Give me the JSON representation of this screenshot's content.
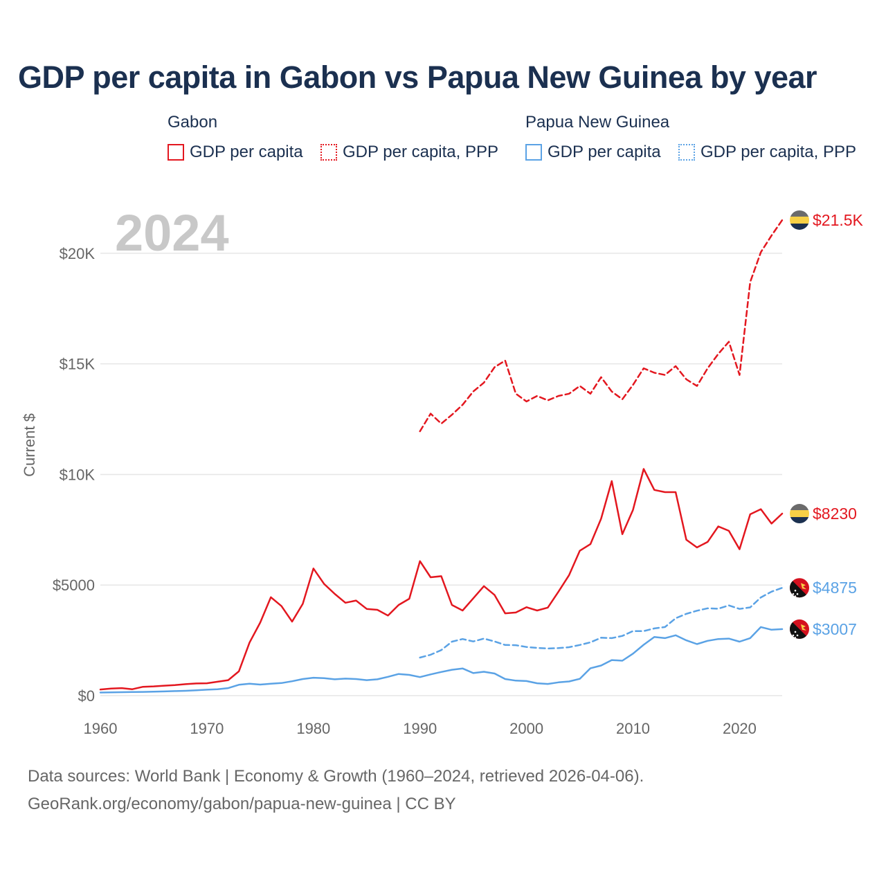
{
  "title": "GDP per capita in Gabon vs Papua New Guinea by year",
  "legend": {
    "groups": [
      {
        "name": "Gabon",
        "items": [
          "GDP per capita",
          "GDP per capita, PPP"
        ]
      },
      {
        "name": "Papua New Guinea",
        "items": [
          "GDP per capita",
          "GDP per capita, PPP"
        ]
      }
    ]
  },
  "colors": {
    "gabon": "#e3171f",
    "png": "#5aa2e5",
    "grid": "#e6e6e6",
    "axis": "#666666"
  },
  "footer": {
    "line1": "Data sources: World Bank | Economy & Growth (1960–2024, retrieved 2026-04-06).",
    "line2": "GeoRank.org/economy/gabon/papua-new-guinea | CC BY"
  },
  "chart_data": {
    "type": "line",
    "year_label": "2024",
    "ylabel": "Current $",
    "xlim": [
      1960,
      2024
    ],
    "ylim": [
      0,
      22000
    ],
    "x_ticks": [
      1960,
      1970,
      1980,
      1990,
      2000,
      2010,
      2020
    ],
    "x_tick_labels": [
      "1960",
      "1970",
      "1980",
      "1990",
      "2000",
      "2010",
      "2020"
    ],
    "y_ticks": [
      0,
      5000,
      10000,
      15000,
      20000
    ],
    "y_tick_labels": [
      "$0",
      "$5000",
      "$10K",
      "$15K",
      "$20K"
    ],
    "series": [
      {
        "name": "Gabon GDP per capita",
        "country": "gabon",
        "style": "solid",
        "end_label": "$8230",
        "x": [
          1960,
          1961,
          1962,
          1963,
          1964,
          1965,
          1966,
          1967,
          1968,
          1969,
          1970,
          1971,
          1972,
          1973,
          1974,
          1975,
          1976,
          1977,
          1978,
          1979,
          1980,
          1981,
          1982,
          1983,
          1984,
          1985,
          1986,
          1987,
          1988,
          1989,
          1990,
          1991,
          1992,
          1993,
          1994,
          1995,
          1996,
          1997,
          1998,
          1999,
          2000,
          2001,
          2002,
          2003,
          2004,
          2005,
          2006,
          2007,
          2008,
          2009,
          2010,
          2011,
          2012,
          2013,
          2014,
          2015,
          2016,
          2017,
          2018,
          2019,
          2020,
          2021,
          2022,
          2023,
          2024
        ],
        "values": [
          280,
          320,
          340,
          290,
          400,
          420,
          450,
          480,
          520,
          550,
          560,
          630,
          700,
          1100,
          2400,
          3300,
          4450,
          4050,
          3350,
          4150,
          5750,
          5050,
          4600,
          4200,
          4300,
          3920,
          3880,
          3620,
          4100,
          4380,
          6080,
          5350,
          5400,
          4100,
          3850,
          4400,
          4950,
          4550,
          3720,
          3760,
          4000,
          3850,
          3980,
          4700,
          5450,
          6550,
          6850,
          8000,
          9700,
          7300,
          8400,
          10250,
          9300,
          9200,
          9200,
          7050,
          6700,
          6950,
          7650,
          7450,
          6620,
          8200,
          8430,
          7780,
          8230
        ]
      },
      {
        "name": "Gabon GDP per capita, PPP",
        "country": "gabon",
        "style": "dashed",
        "end_label": "$21.5K",
        "x": [
          1990,
          1991,
          1992,
          1993,
          1994,
          1995,
          1996,
          1997,
          1998,
          1999,
          2000,
          2001,
          2002,
          2003,
          2004,
          2005,
          2006,
          2007,
          2008,
          2009,
          2010,
          2011,
          2012,
          2013,
          2014,
          2015,
          2016,
          2017,
          2018,
          2019,
          2020,
          2021,
          2022,
          2023,
          2024
        ],
        "values": [
          11950,
          12750,
          12300,
          12700,
          13150,
          13750,
          14150,
          14850,
          15150,
          13650,
          13300,
          13550,
          13350,
          13550,
          13650,
          14000,
          13650,
          14400,
          13750,
          13400,
          14050,
          14800,
          14600,
          14500,
          14900,
          14300,
          14000,
          14800,
          15450,
          16000,
          14500,
          18700,
          20050,
          20800,
          21500
        ]
      },
      {
        "name": "Papua New Guinea GDP per capita",
        "country": "png",
        "style": "solid",
        "end_label": "$3007",
        "x": [
          1960,
          1961,
          1962,
          1963,
          1964,
          1965,
          1966,
          1967,
          1968,
          1969,
          1970,
          1971,
          1972,
          1973,
          1974,
          1975,
          1976,
          1977,
          1978,
          1979,
          1980,
          1981,
          1982,
          1983,
          1984,
          1985,
          1986,
          1987,
          1988,
          1989,
          1990,
          1991,
          1992,
          1993,
          1994,
          1995,
          1996,
          1997,
          1998,
          1999,
          2000,
          2001,
          2002,
          2003,
          2004,
          2005,
          2006,
          2007,
          2008,
          2009,
          2010,
          2011,
          2012,
          2013,
          2014,
          2015,
          2016,
          2017,
          2018,
          2019,
          2020,
          2021,
          2022,
          2023,
          2024
        ],
        "values": [
          140,
          150,
          155,
          165,
          170,
          180,
          190,
          205,
          220,
          240,
          270,
          290,
          340,
          490,
          540,
          500,
          540,
          570,
          650,
          750,
          810,
          790,
          740,
          770,
          750,
          700,
          740,
          850,
          980,
          940,
          840,
          960,
          1070,
          1170,
          1230,
          1020,
          1080,
          1000,
          750,
          680,
          660,
          560,
          530,
          600,
          640,
          760,
          1240,
          1360,
          1610,
          1580,
          1900,
          2300,
          2650,
          2600,
          2730,
          2500,
          2330,
          2480,
          2560,
          2580,
          2440,
          2600,
          3100,
          2980,
          3007
        ]
      },
      {
        "name": "Papua New Guinea GDP per capita, PPP",
        "country": "png",
        "style": "dashed",
        "end_label": "$4875",
        "x": [
          1990,
          1991,
          1992,
          1993,
          1994,
          1995,
          1996,
          1997,
          1998,
          1999,
          2000,
          2001,
          2002,
          2003,
          2004,
          2005,
          2006,
          2007,
          2008,
          2009,
          2010,
          2011,
          2012,
          2013,
          2014,
          2015,
          2016,
          2017,
          2018,
          2019,
          2020,
          2021,
          2022,
          2023,
          2024
        ],
        "values": [
          1720,
          1850,
          2060,
          2440,
          2560,
          2450,
          2580,
          2450,
          2290,
          2280,
          2200,
          2160,
          2130,
          2150,
          2190,
          2290,
          2410,
          2620,
          2600,
          2700,
          2920,
          2920,
          3040,
          3100,
          3500,
          3700,
          3840,
          3950,
          3930,
          4080,
          3920,
          3990,
          4440,
          4700,
          4875
        ]
      }
    ]
  }
}
